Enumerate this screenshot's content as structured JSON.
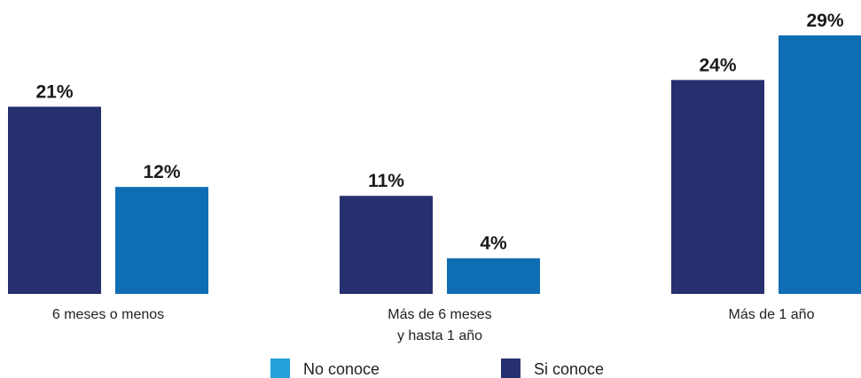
{
  "chart_data": {
    "type": "bar",
    "categories": [
      [
        "6 meses o menos"
      ],
      [
        "Más de 6 meses",
        "y hasta 1 año"
      ],
      [
        "Más de 1 año"
      ]
    ],
    "series": [
      {
        "name": "Si conoce",
        "values": [
          21,
          11,
          24
        ],
        "labels": [
          "21%",
          "11%",
          "24%"
        ],
        "color": "#26306f"
      },
      {
        "name": "No conoce",
        "values": [
          12,
          4,
          29
        ],
        "labels": [
          "12%",
          "4%",
          "29%"
        ],
        "color": "#0f6db4"
      }
    ],
    "legend": [
      {
        "name": "No conoce",
        "color": "#22a2d9"
      },
      {
        "name": "Si conoce",
        "color": "#26306f"
      }
    ],
    "legend_position": "bottom",
    "title": "",
    "xlabel": "",
    "ylabel": "",
    "ylim": [
      0,
      29
    ],
    "grid": false,
    "axes_visible": false
  }
}
